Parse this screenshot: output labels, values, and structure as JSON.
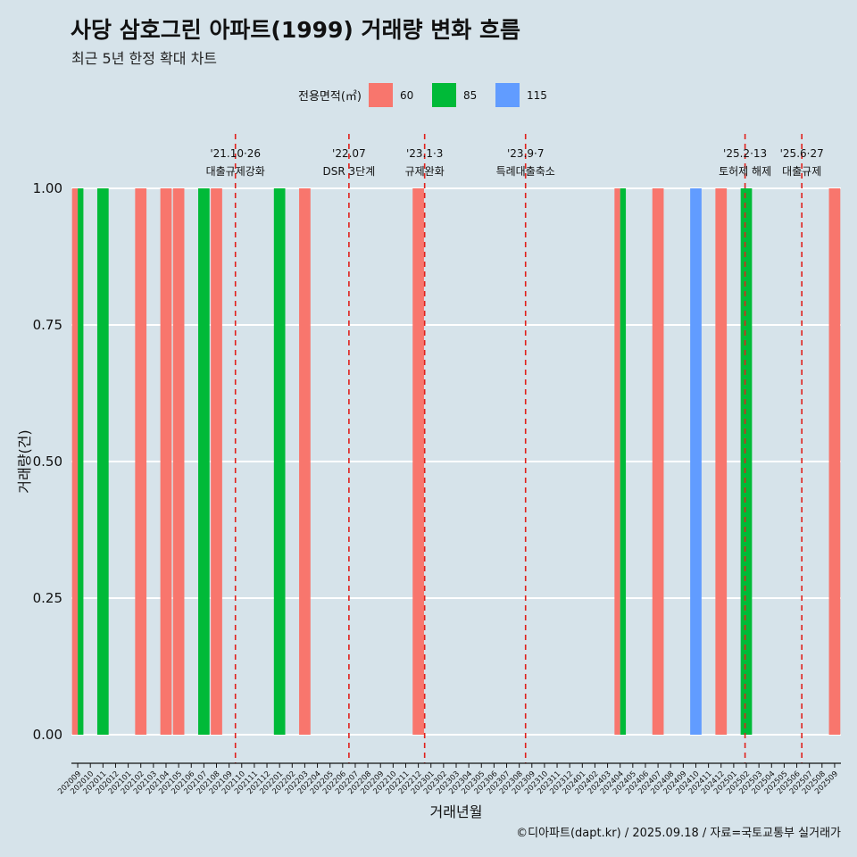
{
  "title": "사당 삼호그린 아파트(1999) 거래량 변화 흐름",
  "subtitle": "최근 5년 한정 확대 차트",
  "caption": "©디아파트(dapt.kr) / 2025.09.18 / 자료=국토교통부 실거래가",
  "legend": {
    "title": "전용면적(㎡)",
    "items": [
      {
        "label": "60",
        "color": "#f8766d"
      },
      {
        "label": "85",
        "color": "#00ba38"
      },
      {
        "label": "115",
        "color": "#619cff"
      }
    ]
  },
  "chart_data": {
    "type": "bar",
    "title": "사당 삼호그린 아파트(1999) 거래량 변화 흐름",
    "xlabel": "거래년월",
    "ylabel": "거래량(건)",
    "ylim": [
      0,
      1
    ],
    "yticks": [
      "0.00",
      "0.25",
      "0.50",
      "0.75",
      "1.00"
    ],
    "categories": [
      "202009",
      "202010",
      "202011",
      "202012",
      "202101",
      "202102",
      "202103",
      "202104",
      "202105",
      "202106",
      "202107",
      "202108",
      "202109",
      "202110",
      "202111",
      "202112",
      "202201",
      "202202",
      "202203",
      "202204",
      "202205",
      "202206",
      "202207",
      "202208",
      "202209",
      "202210",
      "202211",
      "202212",
      "202301",
      "202302",
      "202303",
      "202304",
      "202305",
      "202306",
      "202307",
      "202308",
      "202309",
      "202310",
      "202311",
      "202312",
      "202401",
      "202402",
      "202403",
      "202404",
      "202405",
      "202406",
      "202407",
      "202408",
      "202409",
      "202410",
      "202411",
      "202412",
      "202501",
      "202502",
      "202503",
      "202504",
      "202505",
      "202506",
      "202507",
      "202508",
      "202509"
    ],
    "series": [
      {
        "name": "60",
        "color": "#f8766d",
        "values": [
          1,
          0,
          0,
          0,
          0,
          1,
          0,
          1,
          1,
          0,
          0,
          1,
          0,
          0,
          0,
          0,
          0,
          0,
          1,
          0,
          0,
          0,
          0,
          0,
          0,
          0,
          0,
          1,
          0,
          0,
          0,
          0,
          0,
          0,
          0,
          0,
          0,
          0,
          0,
          0,
          0,
          0,
          0,
          1,
          0,
          0,
          1,
          0,
          0,
          0,
          0,
          1,
          0,
          0,
          0,
          0,
          0,
          0,
          0,
          0,
          1
        ]
      },
      {
        "name": "85",
        "color": "#00ba38",
        "values": [
          1,
          0,
          1,
          0,
          0,
          0,
          0,
          0,
          0,
          0,
          1,
          0,
          0,
          0,
          0,
          0,
          1,
          0,
          0,
          0,
          0,
          0,
          0,
          0,
          0,
          0,
          0,
          0,
          0,
          0,
          0,
          0,
          0,
          0,
          0,
          0,
          0,
          0,
          0,
          0,
          0,
          0,
          0,
          1,
          0,
          0,
          0,
          0,
          0,
          0,
          0,
          0,
          0,
          1,
          0,
          0,
          0,
          0,
          0,
          0,
          0
        ]
      },
      {
        "name": "115",
        "color": "#619cff",
        "values": [
          0,
          0,
          0,
          0,
          0,
          0,
          0,
          0,
          0,
          0,
          0,
          0,
          0,
          0,
          0,
          0,
          0,
          0,
          0,
          0,
          0,
          0,
          0,
          0,
          0,
          0,
          0,
          0,
          0,
          0,
          0,
          0,
          0,
          0,
          0,
          0,
          0,
          0,
          0,
          0,
          0,
          0,
          0,
          0,
          0,
          0,
          0,
          0,
          0,
          1,
          0,
          0,
          0,
          0,
          0,
          0,
          0,
          0,
          0,
          0,
          0
        ]
      }
    ],
    "annotations": [
      {
        "x": 13.0,
        "date": "'21.10·26",
        "label": "대출규제강화"
      },
      {
        "x": 22.0,
        "date": "'22.07",
        "label": "DSR 3단계"
      },
      {
        "x": 28.0,
        "date": "'23.1·3",
        "label": "규제완화"
      },
      {
        "x": 36.0,
        "date": "'23.9·7",
        "label": "특례대출축소"
      },
      {
        "x": 53.4,
        "date": "'25.2·13",
        "label": "토허제 해제"
      },
      {
        "x": 57.9,
        "date": "'25.6·27",
        "label": "대출규제"
      }
    ]
  }
}
